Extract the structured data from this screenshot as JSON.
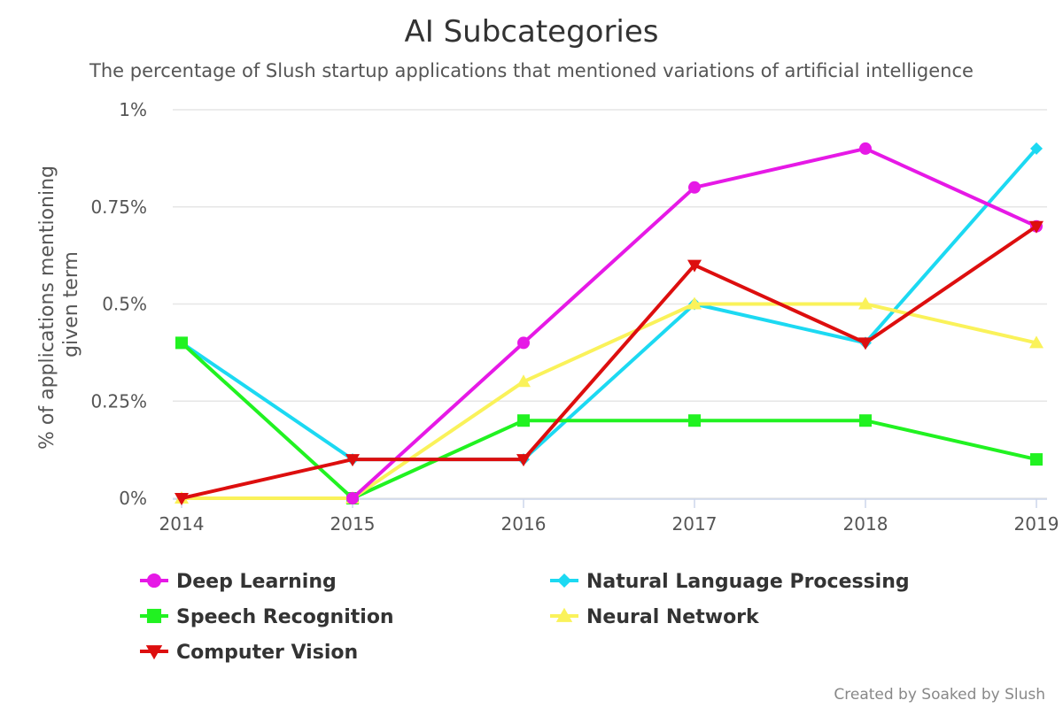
{
  "chart_data": {
    "type": "line",
    "title": "AI Subcategories",
    "subtitle": "The percentage of Slush startup applications that mentioned variations of artificial intelligence",
    "ylabel_line1": "% of applications mentioning",
    "ylabel_line2": "given term",
    "xlabel": "",
    "x": [
      "2014",
      "2015",
      "2016",
      "2017",
      "2018",
      "2019"
    ],
    "ylim": [
      0,
      1
    ],
    "yticks": [
      0,
      0.25,
      0.5,
      0.75,
      1
    ],
    "ytick_labels": [
      "0%",
      "0.25%",
      "0.5%",
      "0.75%",
      "1%"
    ],
    "grid": true,
    "legend_position": "bottom",
    "series": [
      {
        "name": "Deep Learning",
        "color": "#e619e6",
        "marker": "circle",
        "values": [
          null,
          0.0,
          0.4,
          0.8,
          0.9,
          0.7
        ]
      },
      {
        "name": "Natural Language Processing",
        "color": "#1cd9f2",
        "marker": "diamond",
        "values": [
          0.4,
          0.1,
          0.1,
          0.5,
          0.4,
          0.9
        ]
      },
      {
        "name": "Speech Recognition",
        "color": "#21f221",
        "marker": "square",
        "values": [
          0.4,
          0.0,
          0.2,
          0.2,
          0.2,
          0.1
        ]
      },
      {
        "name": "Neural Network",
        "color": "#faf25a",
        "marker": "triangle",
        "values": [
          0.0,
          0.0,
          0.3,
          0.5,
          0.5,
          0.4
        ]
      },
      {
        "name": "Computer Vision",
        "color": "#dd0e0e",
        "marker": "triangle-down",
        "values": [
          0.0,
          0.1,
          0.1,
          0.6,
          0.4,
          0.7
        ]
      }
    ],
    "draw_order": [
      1,
      2,
      3,
      0,
      4
    ],
    "credits": "Created by Soaked by Slush"
  }
}
